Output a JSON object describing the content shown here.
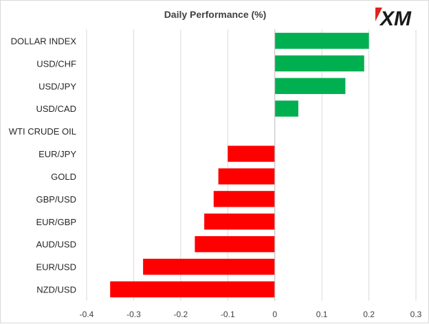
{
  "chart_data": {
    "type": "bar",
    "orientation": "horizontal",
    "title": "Daily Performance (%)",
    "xlabel": "",
    "ylabel": "",
    "xlim": [
      -0.4,
      0.3
    ],
    "xticks": [
      -0.4,
      -0.3,
      -0.2,
      -0.1,
      0,
      0.1,
      0.2,
      0.3
    ],
    "xtick_labels": [
      "-0.4",
      "-0.3",
      "-0.2",
      "-0.1",
      "0",
      "0.1",
      "0.2",
      "0.3"
    ],
    "grid": "vertical",
    "legend": "none",
    "categories": [
      "DOLLAR INDEX",
      "USD/CHF",
      "USD/JPY",
      "USD/CAD",
      "WTI CRUDE OIL",
      "EUR/JPY",
      "GOLD",
      "GBP/USD",
      "EUR/GBP",
      "AUD/USD",
      "EUR/USD",
      "NZD/USD"
    ],
    "values": [
      0.2,
      0.19,
      0.15,
      0.05,
      0.0,
      -0.1,
      -0.12,
      -0.13,
      -0.15,
      -0.17,
      -0.28,
      -0.35
    ],
    "colors": {
      "positive": "#00b050",
      "negative": "#ff0000"
    }
  },
  "logo": {
    "text": "XM",
    "accent": "#e2231a"
  }
}
